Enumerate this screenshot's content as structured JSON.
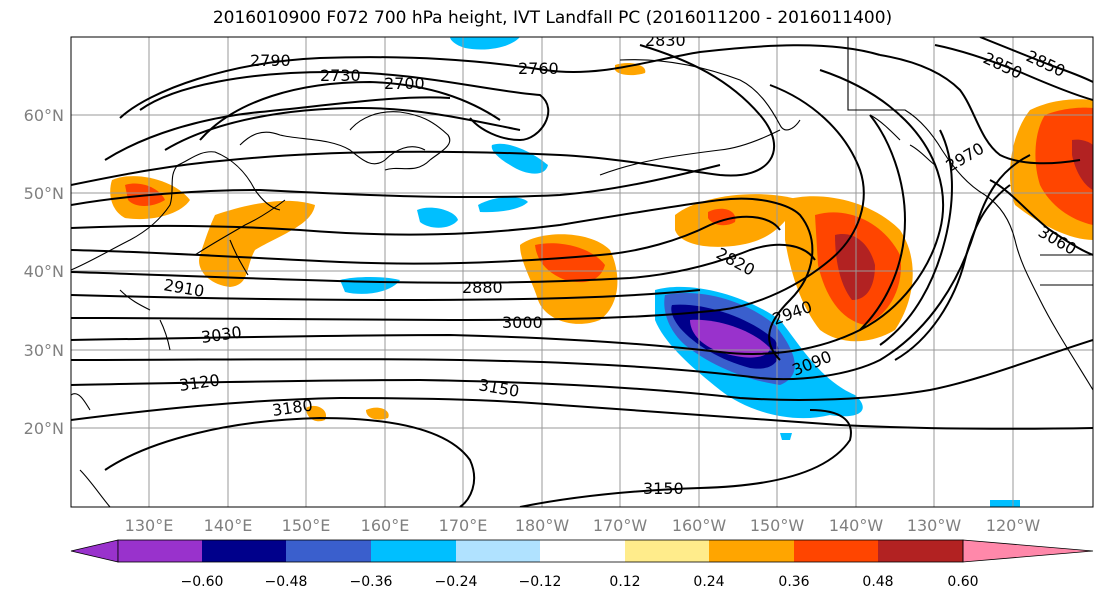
{
  "title": "2016010900 F072 700 hPa height, IVT Landfall PC (2016011200 - 2016011400)",
  "lat_labels": [
    "60°N",
    "50°N",
    "40°N",
    "30°N",
    "20°N"
  ],
  "lon_labels": [
    "130°E",
    "140°E",
    "150°E",
    "160°E",
    "170°E",
    "180°W",
    "170°W",
    "160°W",
    "150°W",
    "140°W",
    "130°W",
    "120°W"
  ],
  "colorbar": {
    "ticks": [
      "−0.60",
      "−0.48",
      "−0.36",
      "−0.24",
      "−0.12",
      "0.12",
      "0.24",
      "0.36",
      "0.48",
      "0.60"
    ],
    "colors": [
      "#9932CC",
      "#00008B",
      "#3A5FCD",
      "#00BFFF",
      "#B0E2FF",
      "#FFFFFF",
      "#FFEC8B",
      "#FFA500",
      "#FF4500",
      "#B22222",
      "#FF88AA"
    ]
  },
  "contour_labels": [
    "2790",
    "2730",
    "2700",
    "2760",
    "2830",
    "2850",
    "2850",
    "2970",
    "3060",
    "2910",
    "2880",
    "2820",
    "3000",
    "2940",
    "3030",
    "3090",
    "3120",
    "3150",
    "3180",
    "3150"
  ]
}
